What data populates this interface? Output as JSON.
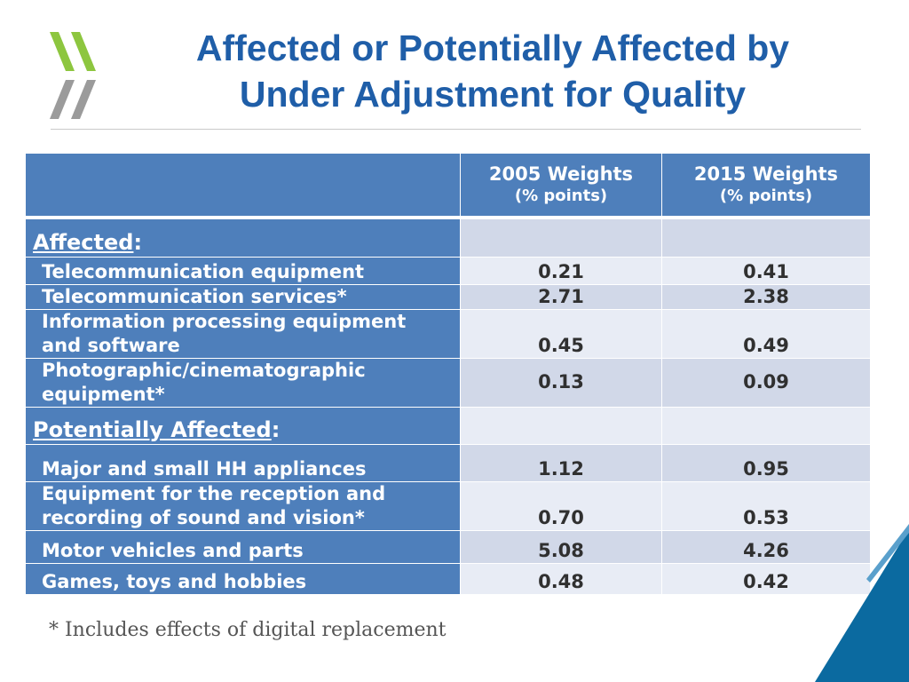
{
  "title": {
    "line1": "Affected or Potentially Affected by",
    "line2": "Under Adjustment for Quality"
  },
  "table": {
    "columns": [
      {
        "year_label": "2005 Weights",
        "unit": "(% points)"
      },
      {
        "year_label": "2015 Weights",
        "unit": "(% points)"
      }
    ],
    "sections": {
      "affected": {
        "heading": "Affected",
        "colon": ":"
      },
      "potentially_affected": {
        "heading": "Potentially Affected",
        "colon": ":"
      }
    },
    "rows": [
      {
        "label": "Telecommunication equipment",
        "w2005": "0.21",
        "w2015": "0.41"
      },
      {
        "label": "Telecommunication services*",
        "w2005": "2.71",
        "w2015": "2.38"
      },
      {
        "label_line1": "Information processing equipment",
        "label_line2": "and software",
        "w2005": "0.45",
        "w2015": "0.49"
      },
      {
        "label_line1": "Photographic/cinematographic",
        "label_line2": "equipment*",
        "w2005": "0.13",
        "w2015": "0.09"
      },
      {
        "label": "Major and small HH appliances",
        "w2005": "1.12",
        "w2015": "0.95"
      },
      {
        "label_line1": "Equipment for the reception and",
        "label_line2": "recording of sound and vision*",
        "w2005": "0.70",
        "w2015": "0.53"
      },
      {
        "label": "Motor vehicles and parts",
        "w2005": "5.08",
        "w2015": "4.26"
      },
      {
        "label": "Games, toys and hobbies",
        "w2005": "0.48",
        "w2015": "0.42"
      }
    ]
  },
  "footnote": "* Includes effects of digital replacement",
  "colors": {
    "title": "#1f5ea8",
    "header_blue": "#4e7fbb",
    "logo_green": "#8dc63f",
    "logo_gray": "#9b9b9b",
    "corner_blue": "#0b6aa0"
  }
}
